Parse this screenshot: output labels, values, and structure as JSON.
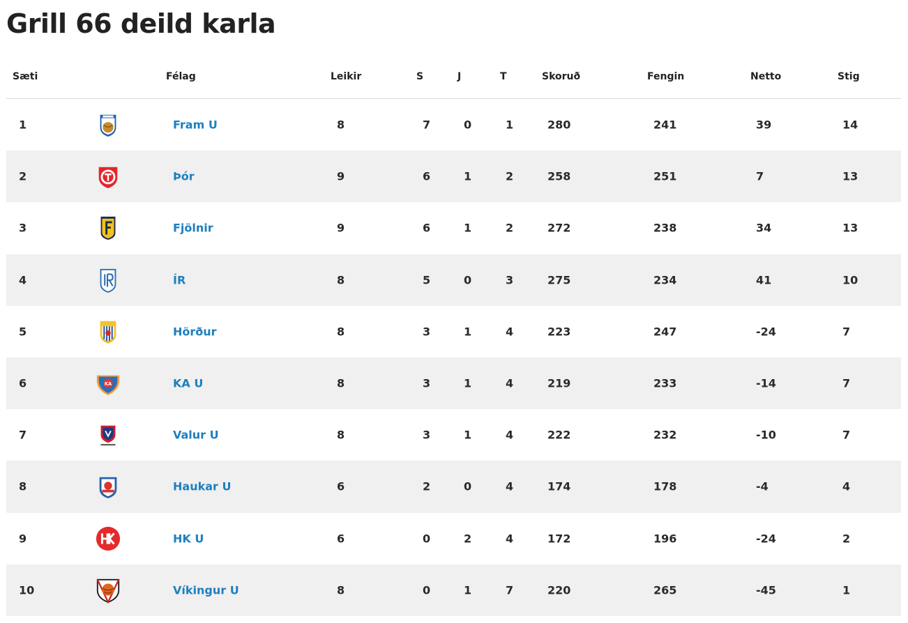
{
  "title": "Grill 66 deild karla",
  "columns": {
    "position": "Sæti",
    "team": "Félag",
    "played": "Leikir",
    "won": "S",
    "drawn": "J",
    "lost": "T",
    "scored": "Skoruð",
    "conceded": "Fengin",
    "diff": "Netto",
    "points": "Stig"
  },
  "rows": [
    {
      "pos": "1",
      "team": "Fram U",
      "logo": "fram-logo-icon",
      "played": "8",
      "won": "7",
      "drawn": "0",
      "lost": "1",
      "scored": "280",
      "conceded": "241",
      "diff": "39",
      "points": "14"
    },
    {
      "pos": "2",
      "team": "Þór",
      "logo": "thor-logo-icon",
      "played": "9",
      "won": "6",
      "drawn": "1",
      "lost": "2",
      "scored": "258",
      "conceded": "251",
      "diff": "7",
      "points": "13"
    },
    {
      "pos": "3",
      "team": "Fjölnir",
      "logo": "fjolnir-logo-icon",
      "played": "9",
      "won": "6",
      "drawn": "1",
      "lost": "2",
      "scored": "272",
      "conceded": "238",
      "diff": "34",
      "points": "13"
    },
    {
      "pos": "4",
      "team": "ÍR",
      "logo": "ir-logo-icon",
      "played": "8",
      "won": "5",
      "drawn": "0",
      "lost": "3",
      "scored": "275",
      "conceded": "234",
      "diff": "41",
      "points": "10"
    },
    {
      "pos": "5",
      "team": "Hörður",
      "logo": "hordur-logo-icon",
      "played": "8",
      "won": "3",
      "drawn": "1",
      "lost": "4",
      "scored": "223",
      "conceded": "247",
      "diff": "-24",
      "points": "7"
    },
    {
      "pos": "6",
      "team": "KA U",
      "logo": "ka-logo-icon",
      "played": "8",
      "won": "3",
      "drawn": "1",
      "lost": "4",
      "scored": "219",
      "conceded": "233",
      "diff": "-14",
      "points": "7"
    },
    {
      "pos": "7",
      "team": "Valur U",
      "logo": "valur-logo-icon",
      "played": "8",
      "won": "3",
      "drawn": "1",
      "lost": "4",
      "scored": "222",
      "conceded": "232",
      "diff": "-10",
      "points": "7"
    },
    {
      "pos": "8",
      "team": "Haukar U",
      "logo": "haukar-logo-icon",
      "played": "6",
      "won": "2",
      "drawn": "0",
      "lost": "4",
      "scored": "174",
      "conceded": "178",
      "diff": "-4",
      "points": "4"
    },
    {
      "pos": "9",
      "team": "HK U",
      "logo": "hk-logo-icon",
      "played": "6",
      "won": "0",
      "drawn": "2",
      "lost": "4",
      "scored": "172",
      "conceded": "196",
      "diff": "-24",
      "points": "2"
    },
    {
      "pos": "10",
      "team": "Víkingur U",
      "logo": "vikingur-logo-icon",
      "played": "8",
      "won": "0",
      "drawn": "1",
      "lost": "7",
      "scored": "220",
      "conceded": "265",
      "diff": "-45",
      "points": "1"
    }
  ],
  "colors": {
    "link": "#1d7fbf",
    "row_alt": "#f0f0f0",
    "text": "#222222"
  }
}
